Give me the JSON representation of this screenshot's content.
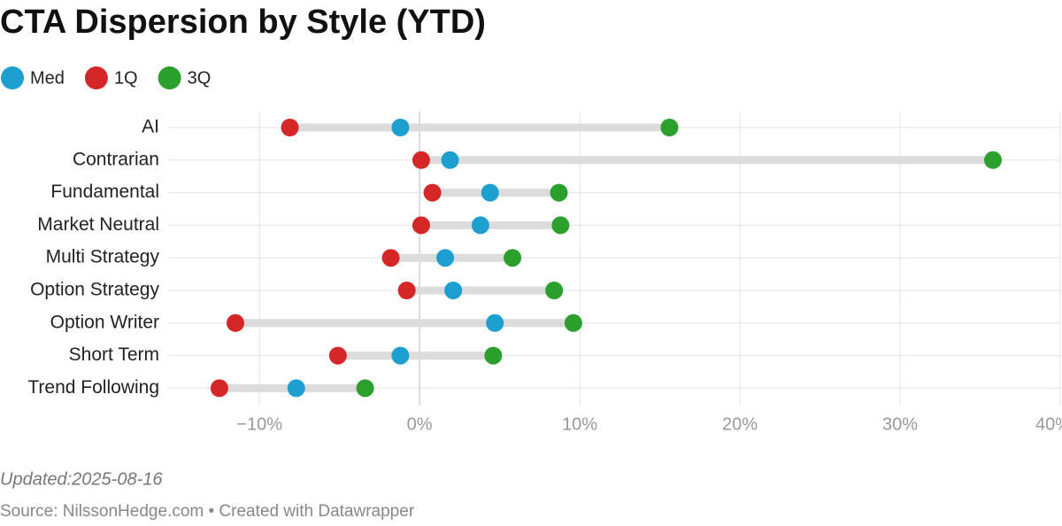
{
  "chart_data": {
    "type": "dot-range",
    "title": "CTA Dispersion by Style (YTD)",
    "categories": [
      "AI",
      "Contrarian",
      "Fundamental",
      "Market Neutral",
      "Multi Strategy",
      "Option Strategy",
      "Option Writer",
      "Short Term",
      "Trend Following"
    ],
    "series": [
      {
        "name": "Med",
        "color": "#1d9fd0",
        "values": [
          -1.2,
          1.9,
          4.4,
          3.8,
          1.6,
          2.1,
          4.7,
          -1.2,
          -7.7
        ]
      },
      {
        "name": "1Q",
        "color": "#d62728",
        "values": [
          -8.1,
          0.1,
          0.8,
          0.1,
          -1.8,
          -0.8,
          -11.5,
          -5.1,
          -12.5
        ]
      },
      {
        "name": "3Q",
        "color": "#2ca02c",
        "values": [
          15.6,
          35.8,
          8.7,
          8.8,
          5.8,
          8.4,
          9.6,
          4.6,
          -3.4
        ]
      }
    ],
    "xlim": [
      -15.7,
      40
    ],
    "xticks": [
      {
        "value": -10,
        "label": "−10%"
      },
      {
        "value": 0,
        "label": "0%"
      },
      {
        "value": 10,
        "label": "10%"
      },
      {
        "value": 20,
        "label": "20%"
      },
      {
        "value": 30,
        "label": "30%"
      },
      {
        "value": 40,
        "label": "40%"
      }
    ],
    "grid": true,
    "footnote": "Updated:2025-08-16",
    "source": "Source: NilssonHedge.com • Created with Datawrapper"
  }
}
